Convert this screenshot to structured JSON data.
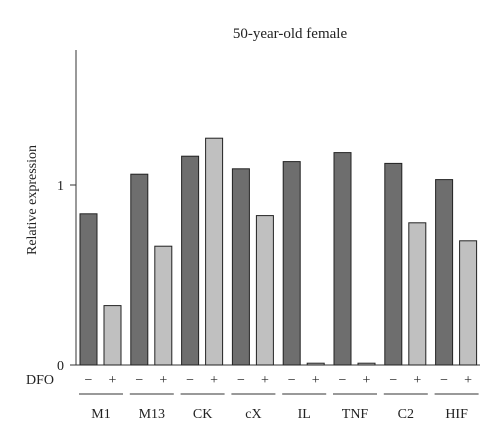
{
  "chart_data": {
    "type": "bar",
    "title": "50-year-old female",
    "ylabel": "Relative expression",
    "xlabel": "",
    "ylim": [
      0,
      1.75
    ],
    "yticks": [
      0,
      1
    ],
    "treatment_label": "DFO",
    "treatment_signs": [
      "−",
      "+"
    ],
    "categories": [
      "M1",
      "M13",
      "CK",
      "cX",
      "IL",
      "TNF",
      "C2",
      "HIF"
    ],
    "series": [
      {
        "sign": "−",
        "color": "#6e6e6e",
        "values": [
          0.84,
          1.06,
          1.16,
          1.09,
          1.13,
          1.18,
          1.12,
          1.03
        ]
      },
      {
        "sign": "+",
        "color": "#c0c0c0",
        "values": [
          0.33,
          0.66,
          1.26,
          0.83,
          0.01,
          0.01,
          0.79,
          0.69
        ]
      }
    ],
    "grid": false
  }
}
